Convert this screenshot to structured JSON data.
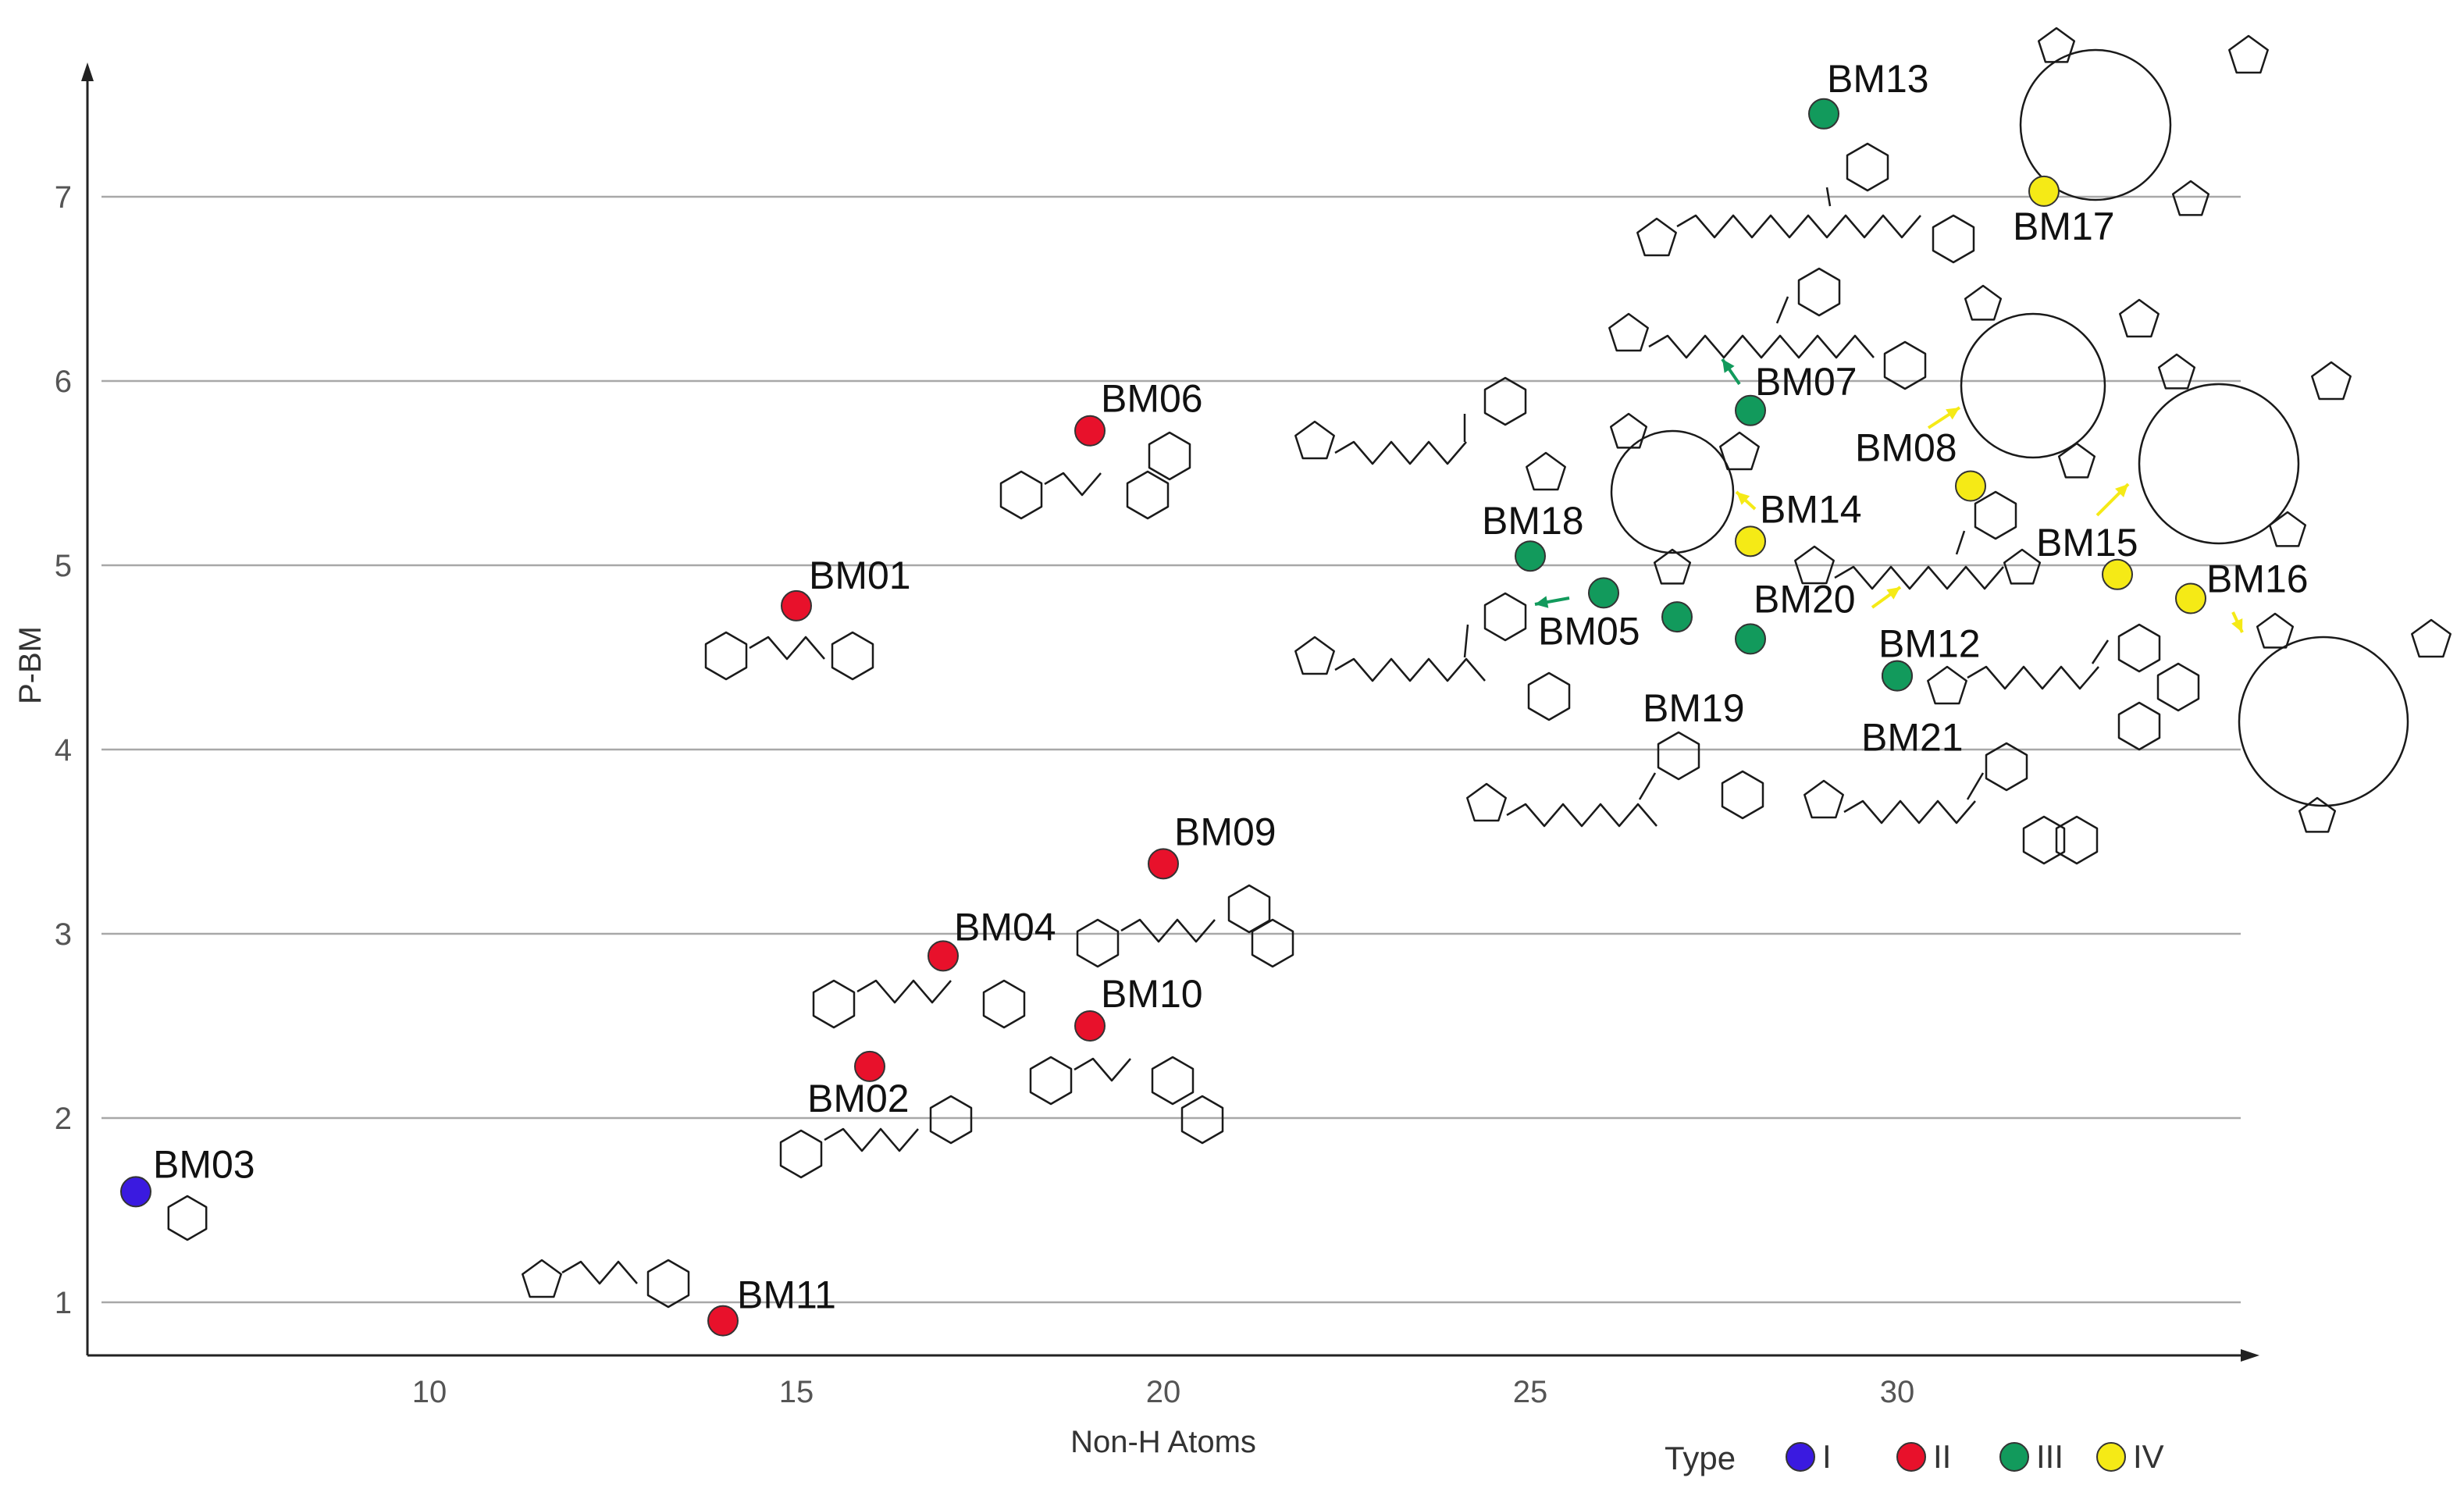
{
  "chart_data": {
    "type": "scatter",
    "title": "",
    "xlabel": "Non-H Atoms",
    "ylabel": "P-BM",
    "xlim": [
      5.3,
      35.5
    ],
    "ylim": [
      0.4,
      7.75
    ],
    "x_ticks": [
      10,
      15,
      20,
      25,
      30
    ],
    "y_ticks": [
      1,
      2,
      3,
      4,
      5,
      6,
      7
    ],
    "grid": "horizontal",
    "legend": {
      "title": "Type",
      "placement": "bottom-right",
      "entries": [
        {
          "type": "I",
          "label": "I",
          "color": "#3a1ae0"
        },
        {
          "type": "II",
          "label": "II",
          "color": "#e8112b"
        },
        {
          "type": "III",
          "label": "III",
          "color": "#129a5c"
        },
        {
          "type": "IV",
          "label": "IV",
          "color": "#f5ea16"
        }
      ]
    },
    "points": [
      {
        "label": "BM03",
        "x": 6,
        "y": 1.6,
        "type": "I"
      },
      {
        "label": "BM11",
        "x": 14,
        "y": 0.9,
        "type": "II"
      },
      {
        "label": "BM01",
        "x": 15,
        "y": 4.78,
        "type": "II"
      },
      {
        "label": "BM02",
        "x": 16,
        "y": 2.28,
        "type": "II"
      },
      {
        "label": "BM04",
        "x": 17,
        "y": 2.88,
        "type": "II"
      },
      {
        "label": "BM06",
        "x": 19,
        "y": 5.73,
        "type": "II"
      },
      {
        "label": "BM10",
        "x": 19,
        "y": 2.5,
        "type": "II"
      },
      {
        "label": "BM09",
        "x": 20,
        "y": 3.38,
        "type": "II"
      },
      {
        "label": "BM18",
        "x": 25,
        "y": 5.05,
        "type": "III"
      },
      {
        "label": "BM05",
        "x": 26,
        "y": 4.85,
        "type": "III"
      },
      {
        "label": "BM19",
        "x": 27,
        "y": 4.72,
        "type": "III"
      },
      {
        "label": "BM07",
        "x": 28,
        "y": 5.84,
        "type": "III"
      },
      {
        "label": "BM20",
        "x": 28,
        "y": 4.6,
        "type": "III"
      },
      {
        "label": "BM13",
        "x": 29,
        "y": 7.45,
        "type": "III"
      },
      {
        "label": "BM12",
        "x": 30,
        "y": 4.4,
        "type": "III"
      },
      {
        "label": "BM21",
        "x": 30,
        "y": 4.4,
        "type": "III"
      },
      {
        "label": "BM14",
        "x": 28,
        "y": 5.13,
        "type": "IV"
      },
      {
        "label": "BM08",
        "x": 31,
        "y": 5.43,
        "type": "IV"
      },
      {
        "label": "BM17",
        "x": 32,
        "y": 7.03,
        "type": "IV"
      },
      {
        "label": "BM15",
        "x": 33,
        "y": 4.95,
        "type": "IV"
      },
      {
        "label": "BM16",
        "x": 34,
        "y": 4.82,
        "type": "IV"
      }
    ]
  }
}
